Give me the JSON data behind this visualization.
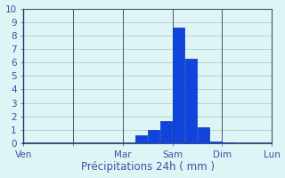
{
  "title": "",
  "xlabel": "Précipitations 24h ( mm )",
  "ylabel": "",
  "background_color": "#dff4f4",
  "bar_color": "#1144dd",
  "bar_edge_color": "#0033bb",
  "ylim": [
    0,
    10
  ],
  "yticks": [
    0,
    1,
    2,
    3,
    4,
    5,
    6,
    7,
    8,
    9,
    10
  ],
  "day_labels": [
    "Ven",
    "Mar",
    "Sam",
    "Dim",
    "Lun"
  ],
  "grid_color": "#aacfcf",
  "tick_color": "#3355aa",
  "label_color": "#3355aa",
  "xlabel_fontsize": 8.5,
  "tick_fontsize": 7.5,
  "vline_color": "#445577",
  "num_hours": 120,
  "bar_hour_starts": [
    54,
    60,
    66,
    72,
    78,
    84,
    90,
    96
  ],
  "bar_values": [
    0.6,
    1.0,
    1.65,
    8.6,
    6.3,
    1.2,
    0.15,
    0.1
  ],
  "day_tick_hours": [
    0,
    24,
    48,
    72,
    96,
    120
  ],
  "day_tick_labels": [
    "Ven",
    "",
    "Mar",
    "Sam",
    "Dim",
    "Lun"
  ]
}
